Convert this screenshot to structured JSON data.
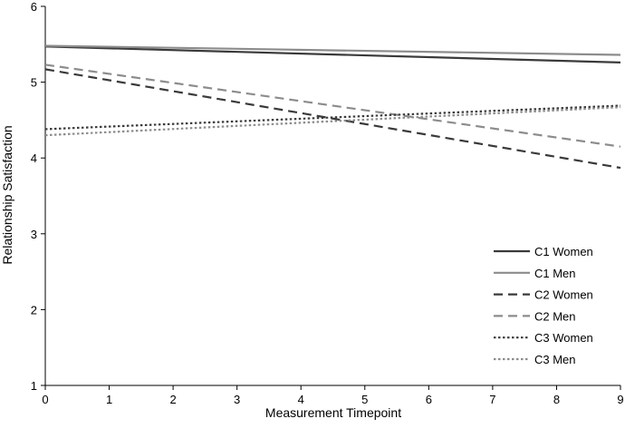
{
  "chart_data": {
    "type": "line",
    "title": "",
    "xlabel": "Measurement Timepoint",
    "ylabel": "Relationship Satisfaction",
    "xlim": [
      0,
      9
    ],
    "ylim": [
      1,
      6
    ],
    "xticks": [
      "0",
      "1",
      "2",
      "3",
      "4",
      "5",
      "6",
      "7",
      "8",
      "9"
    ],
    "yticks": [
      "1",
      "2",
      "3",
      "4",
      "5",
      "6"
    ],
    "grid": false,
    "legend_position": "right-bottom",
    "series": [
      {
        "name": "C1 Women",
        "x": [
          0,
          9
        ],
        "values": [
          5.47,
          5.26
        ],
        "color": "#3a3a3a",
        "dash": "solid"
      },
      {
        "name": "C1 Men",
        "x": [
          0,
          9
        ],
        "values": [
          5.48,
          5.36
        ],
        "color": "#8c8c8c",
        "dash": "solid"
      },
      {
        "name": "C2 Women",
        "x": [
          0,
          9
        ],
        "values": [
          5.17,
          3.87
        ],
        "color": "#3a3a3a",
        "dash": "dashed"
      },
      {
        "name": "C2 Men",
        "x": [
          0,
          9
        ],
        "values": [
          5.23,
          4.15
        ],
        "color": "#8c8c8c",
        "dash": "dashed"
      },
      {
        "name": "C3 Women",
        "x": [
          0,
          9
        ],
        "values": [
          4.38,
          4.69
        ],
        "color": "#3a3a3a",
        "dash": "dotted"
      },
      {
        "name": "C3 Men",
        "x": [
          0,
          9
        ],
        "values": [
          4.3,
          4.67
        ],
        "color": "#8c8c8c",
        "dash": "dotted"
      }
    ]
  }
}
